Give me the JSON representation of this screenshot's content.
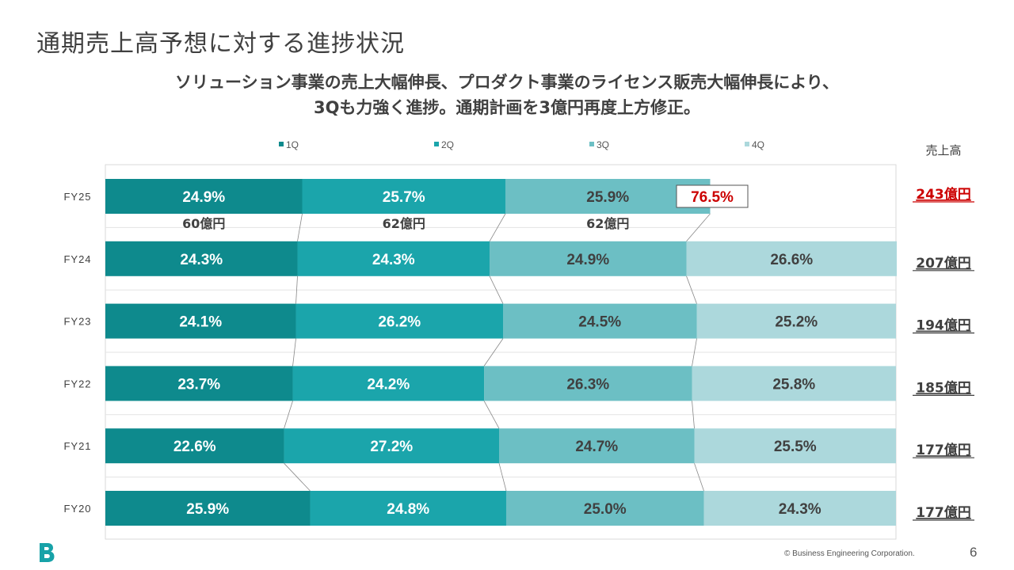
{
  "slide": {
    "title": "通期売上高予想に対する進捗状況",
    "subtitle_line1": "ソリューション事業の売上大幅伸長、プロダクト事業のライセンス販売大幅伸長により、",
    "subtitle_line2": "3Qも力強く進捗。通期計画を3億円再度上方修正。",
    "copyright": "© Business Engineering Corporation.",
    "page_number": "6"
  },
  "colors": {
    "q1": "#0e8a8d",
    "q2": "#1ba5ab",
    "q3": "#6cbfc4",
    "q4": "#acd8dc",
    "highlight_red": "#cc0000",
    "logo": "#17a2a8"
  },
  "chart_data": {
    "type": "bar",
    "orientation": "horizontal-stacked-100",
    "categories": [
      "FY25",
      "FY24",
      "FY23",
      "FY22",
      "FY21",
      "FY20"
    ],
    "series": [
      {
        "name": "1Q",
        "values": [
          24.9,
          24.3,
          24.1,
          23.7,
          22.6,
          25.9
        ],
        "labels": [
          "24.9%",
          "24.3%",
          "24.1%",
          "23.7%",
          "22.6%",
          "25.9%"
        ]
      },
      {
        "name": "2Q",
        "values": [
          25.7,
          24.3,
          26.2,
          24.2,
          27.2,
          24.8
        ],
        "labels": [
          "25.7%",
          "24.3%",
          "26.2%",
          "24.2%",
          "27.2%",
          "24.8%"
        ]
      },
      {
        "name": "3Q",
        "values": [
          25.9,
          24.9,
          24.5,
          26.3,
          24.7,
          25.0
        ],
        "labels": [
          "25.9%",
          "24.9%",
          "24.5%",
          "26.3%",
          "24.7%",
          "25.0%"
        ]
      },
      {
        "name": "4Q",
        "values": [
          null,
          26.6,
          25.2,
          25.8,
          25.5,
          24.3
        ],
        "labels": [
          "",
          "26.6%",
          "25.2%",
          "25.8%",
          "25.5%",
          "24.3%"
        ]
      }
    ],
    "cumulative_label": {
      "category": "FY25",
      "text": "76.5%"
    },
    "fy25_quarter_sales": [
      "60億円",
      "62億円",
      "62億円"
    ],
    "sales_header": "売上高",
    "sales": [
      "243億円",
      "207億円",
      "194億円",
      "185億円",
      "177億円",
      "177億円"
    ],
    "xlim": [
      0,
      100
    ],
    "legend_position": "top"
  }
}
